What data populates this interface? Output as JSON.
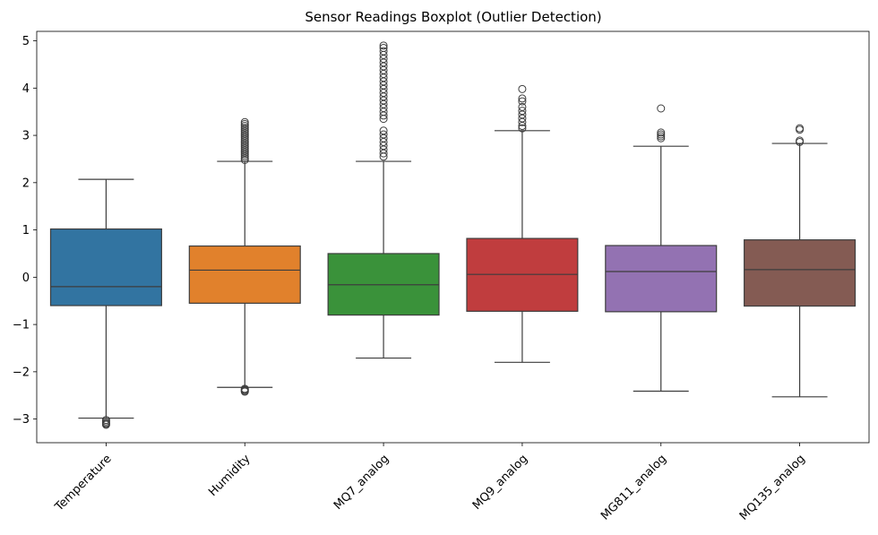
{
  "chart_data": {
    "type": "box",
    "title": "Sensor Readings Boxplot (Outlier Detection)",
    "xlabel": "",
    "ylabel": "",
    "ylim": [
      -3.5,
      5.2
    ],
    "yticks": [
      -3,
      -2,
      -1,
      0,
      1,
      2,
      3,
      4,
      5
    ],
    "ytick_labels": [
      "−3",
      "−2",
      "−1",
      "0",
      "1",
      "2",
      "3",
      "4",
      "5"
    ],
    "grid": false,
    "series": [
      {
        "category": "Temperature",
        "color": "#3274a1",
        "q1": -0.6,
        "median": -0.2,
        "q3": 1.02,
        "whisker_low": -2.98,
        "whisker_high": 2.07,
        "outliers": [
          -3.02,
          -3.05,
          -3.08,
          -3.1,
          -3.12
        ]
      },
      {
        "category": "Humidity",
        "color": "#e1812c",
        "q1": -0.55,
        "median": 0.15,
        "q3": 0.66,
        "whisker_low": -2.33,
        "whisker_high": 2.45,
        "outliers": [
          -2.36,
          -2.38,
          -2.4,
          -2.42,
          2.48,
          2.52,
          2.56,
          2.6,
          2.64,
          2.68,
          2.72,
          2.76,
          2.8,
          2.84,
          2.88,
          2.92,
          2.96,
          3.0,
          3.04,
          3.08,
          3.12,
          3.16,
          3.2,
          3.24,
          3.28
        ]
      },
      {
        "category": "MQ7_analog",
        "color": "#3a923a",
        "q1": -0.8,
        "median": -0.16,
        "q3": 0.5,
        "whisker_low": -1.71,
        "whisker_high": 2.45,
        "outliers": [
          2.55,
          2.62,
          2.7,
          2.78,
          2.86,
          2.94,
          3.02,
          3.1,
          3.35,
          3.42,
          3.5,
          3.58,
          3.66,
          3.74,
          3.82,
          3.9,
          3.98,
          4.06,
          4.14,
          4.22,
          4.3,
          4.38,
          4.46,
          4.54,
          4.62,
          4.7,
          4.78,
          4.85,
          4.9
        ]
      },
      {
        "category": "MQ9_analog",
        "color": "#c03d3e",
        "q1": -0.72,
        "median": 0.06,
        "q3": 0.82,
        "whisker_low": -1.8,
        "whisker_high": 3.1,
        "outliers": [
          3.15,
          3.2,
          3.28,
          3.36,
          3.44,
          3.52,
          3.6,
          3.72,
          3.78,
          3.98
        ]
      },
      {
        "category": "MG811_analog",
        "color": "#9372b2",
        "q1": -0.73,
        "median": 0.12,
        "q3": 0.67,
        "whisker_low": -2.41,
        "whisker_high": 2.77,
        "outliers": [
          2.94,
          2.98,
          3.02,
          3.06,
          3.57
        ]
      },
      {
        "category": "MQ135_analog",
        "color": "#845b53",
        "q1": -0.61,
        "median": 0.16,
        "q3": 0.79,
        "whisker_low": -2.53,
        "whisker_high": 2.83,
        "outliers": [
          2.86,
          2.89,
          3.12,
          3.15
        ]
      }
    ]
  }
}
